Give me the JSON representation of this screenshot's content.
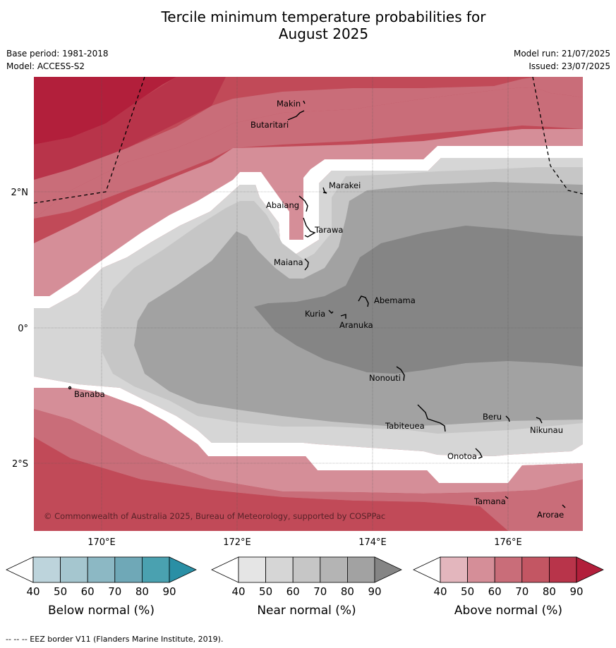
{
  "title_line1": "Tercile minimum temperature probabilities for",
  "title_line2": "August 2025",
  "base_period": "Base period: 1981-2018",
  "model": "Model: ACCESS-S2",
  "model_run": "Model run: 21/07/2025",
  "issued": "Issued: 23/07/2025",
  "copyright": "© Commonwealth of Australia 2025, Bureau of Meteorology, supported by COSPPac",
  "footnote": "--  --  -- EEZ border V11 (Flanders Marine Institute, 2019).",
  "lat_labels": [
    "2°N",
    "0°",
    "2°S"
  ],
  "lon_labels": [
    "170°E",
    "172°E",
    "174°E",
    "176°E"
  ],
  "places": [
    "Makin",
    "Butaritari",
    "Marakei",
    "Abaiang",
    "Tarawa",
    "Maiana",
    "Abemama",
    "Kuria",
    "Aranuka",
    "Nonouti",
    "Banaba",
    "Tabiteuea",
    "Beru",
    "Nikunau",
    "Onotoa",
    "Tamana",
    "Arorae"
  ],
  "colorbars": [
    {
      "label": "Below normal (%)",
      "ticks": [
        "40",
        "50",
        "60",
        "70",
        "80",
        "90"
      ],
      "colors": [
        "#ffffff",
        "#bdd4dc",
        "#a5c6cf",
        "#8cb8c4",
        "#6fa8b7",
        "#4aa1b0",
        "#2a8fa5"
      ]
    },
    {
      "label": "Near normal (%)",
      "ticks": [
        "40",
        "50",
        "60",
        "70",
        "80",
        "90"
      ],
      "colors": [
        "#ffffff",
        "#e5e5e5",
        "#d6d6d6",
        "#c6c6c6",
        "#b4b4b4",
        "#a2a2a2",
        "#858585"
      ]
    },
    {
      "label": "Above normal (%)",
      "ticks": [
        "40",
        "50",
        "60",
        "70",
        "80",
        "90"
      ],
      "colors": [
        "#ffffff",
        "#e3b6bd",
        "#d58e98",
        "#c96d79",
        "#c35663",
        "#b8344a",
        "#b21f3b"
      ]
    }
  ],
  "legend_colors": {
    "above_90": "#b21f3b",
    "above_80": "#b8344a",
    "above_70": "#c14a58",
    "above_60": "#c96d79",
    "above_50": "#d58e98",
    "near_50": "#d6d6d6",
    "near_60": "#c6c6c6",
    "near_70": "#a2a2a2",
    "near_80": "#858585"
  }
}
